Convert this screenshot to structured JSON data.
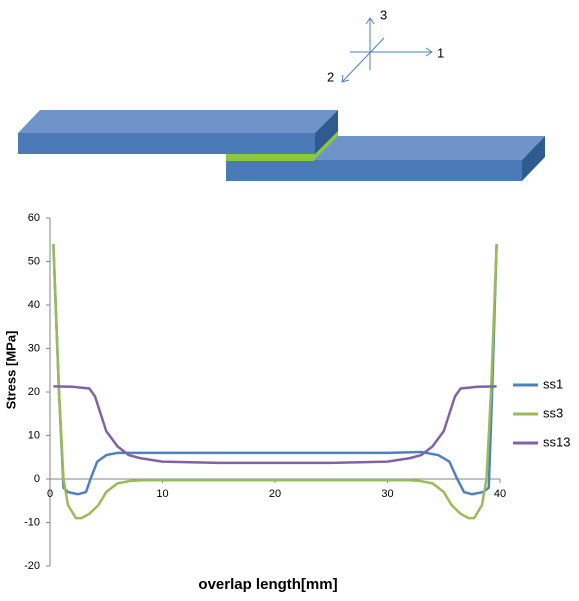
{
  "diagram": {
    "axis_labels": [
      "3",
      "1",
      "2"
    ]
  },
  "chart_data": {
    "type": "line",
    "xlabel": "overlap length[mm]",
    "ylabel": "Stress [MPa]",
    "xlim": [
      0,
      40
    ],
    "xticks": [
      0,
      10,
      20,
      30,
      40
    ],
    "ylim": [
      -20,
      60
    ],
    "yticks": [
      -20,
      -10,
      0,
      10,
      20,
      30,
      40,
      50,
      60
    ],
    "grid": false,
    "legend": "right",
    "series": [
      {
        "name": "ss1",
        "color": "#4f81bd",
        "x": [
          0.3,
          0.8,
          1.2,
          1.6,
          2.5,
          3.2,
          3.6,
          4.2,
          5,
          6,
          8,
          10,
          20,
          30,
          33,
          34.5,
          35.5,
          36.2,
          36.8,
          37.5,
          38.5,
          39,
          39.3,
          39.7
        ],
        "values": [
          54,
          20,
          -2,
          -3,
          -3.5,
          -3,
          0,
          4,
          5.5,
          6,
          6,
          6,
          6,
          6,
          6.2,
          5.5,
          4,
          0,
          -3,
          -3.5,
          -3,
          -2,
          20,
          54
        ]
      },
      {
        "name": "ss3",
        "color": "#9bbb59",
        "x": [
          0.3,
          0.8,
          1.2,
          1.6,
          2.3,
          2.8,
          3.5,
          4.3,
          5,
          6,
          7,
          8,
          20,
          32,
          33,
          34,
          35,
          35.7,
          36.5,
          37.2,
          37.7,
          38.4,
          38.8,
          39.2,
          39.7
        ],
        "values": [
          54,
          20,
          0,
          -6,
          -9,
          -9,
          -8,
          -6,
          -3,
          -1,
          -0.5,
          -0.3,
          -0.3,
          -0.3,
          -0.5,
          -1,
          -3,
          -6,
          -8,
          -9,
          -9,
          -6,
          0,
          20,
          54
        ]
      },
      {
        "name": "ss13",
        "color": "#8064a2",
        "x": [
          0.3,
          2,
          3.5,
          4,
          4.5,
          5,
          6,
          7,
          8,
          10,
          15,
          20,
          25,
          30,
          32,
          33,
          34,
          35,
          35.5,
          36,
          36.5,
          38,
          39.7
        ],
        "values": [
          21.3,
          21.2,
          20.8,
          19,
          15,
          11,
          7.5,
          5.5,
          4.8,
          4,
          3.7,
          3.7,
          3.7,
          4,
          4.8,
          5.5,
          7.5,
          11,
          15,
          19,
          20.8,
          21.2,
          21.3
        ]
      }
    ]
  }
}
